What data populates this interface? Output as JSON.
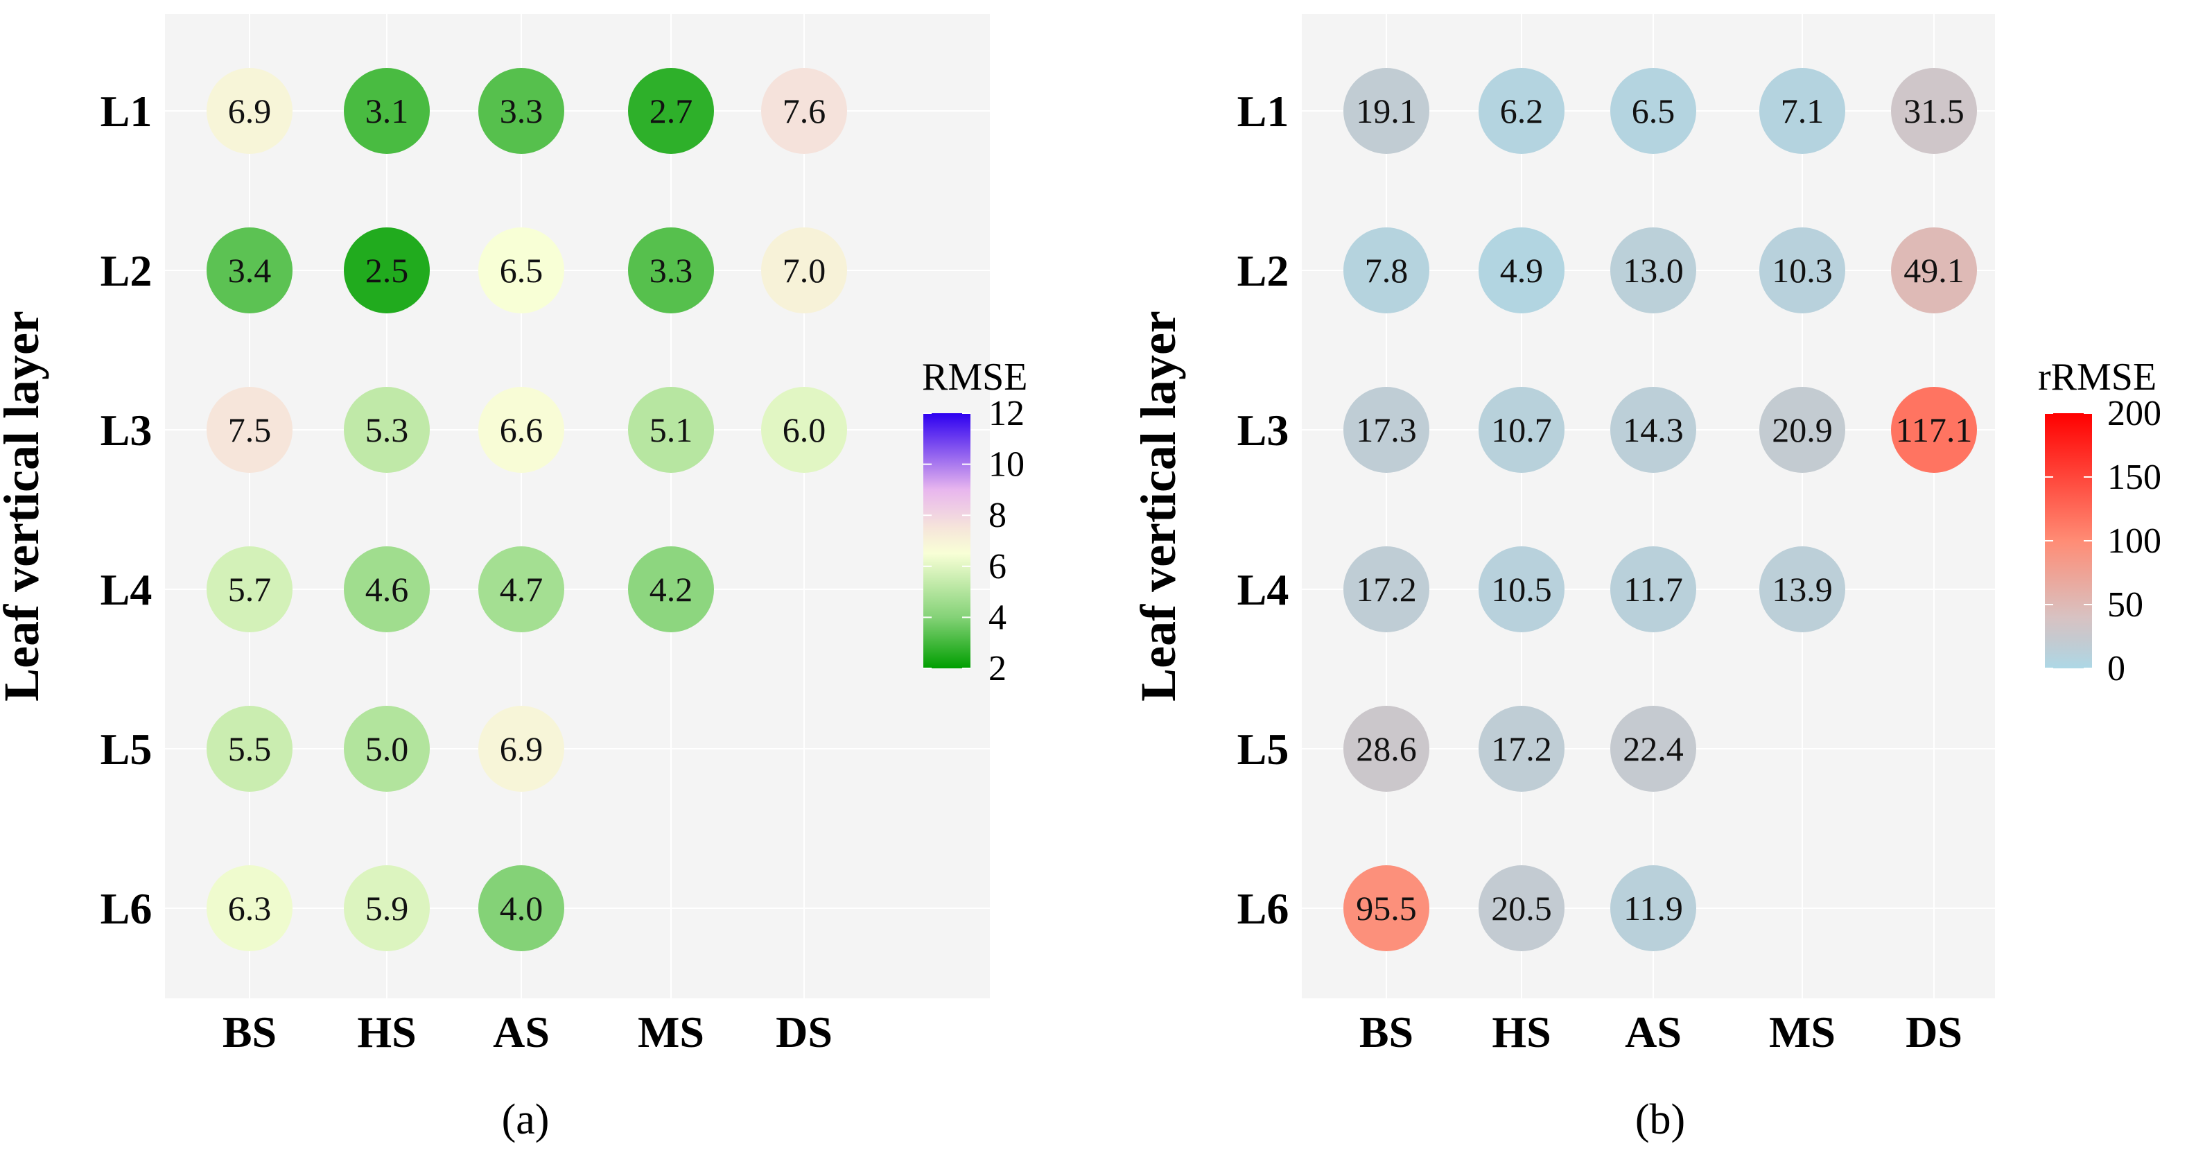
{
  "chart_data": [
    {
      "type": "heatmap",
      "panel_label": "(a)",
      "ylabel": "Leaf  vertical  layer",
      "categories": [
        "BS",
        "HS",
        "AS",
        "MS",
        "DS"
      ],
      "layers": [
        "L1",
        "L2",
        "L3",
        "L4",
        "L5",
        "L6"
      ],
      "values": [
        [
          6.9,
          3.1,
          3.3,
          2.7,
          7.6
        ],
        [
          3.4,
          2.5,
          6.5,
          3.3,
          7.0
        ],
        [
          7.5,
          5.3,
          6.6,
          5.1,
          6.0
        ],
        [
          5.7,
          4.6,
          4.7,
          4.2,
          null
        ],
        [
          5.5,
          5.0,
          6.9,
          null,
          null
        ],
        [
          6.3,
          5.9,
          4.0,
          null,
          null
        ]
      ],
      "legend": {
        "title": "RMSE",
        "min": 2,
        "max": 12,
        "ticks": [
          2,
          4,
          6,
          8,
          10,
          12
        ],
        "tick_labels": [
          "2",
          "4",
          "6",
          "8",
          "10",
          "12"
        ],
        "stops": [
          {
            "value": 2,
            "color": "#009e00"
          },
          {
            "value": 4,
            "color": "#84d277"
          },
          {
            "value": 6.5,
            "color": "#f8ffd6"
          },
          {
            "value": 7.5,
            "color": "#f6e5da"
          },
          {
            "value": 9,
            "color": "#e8b6ee"
          },
          {
            "value": 12,
            "color": "#2d00f0"
          }
        ]
      },
      "grid": true,
      "background": "#f4f4f4"
    },
    {
      "type": "heatmap",
      "panel_label": "(b)",
      "ylabel": "Leaf  vertical  layer",
      "categories": [
        "BS",
        "HS",
        "AS",
        "MS",
        "DS"
      ],
      "layers": [
        "L1",
        "L2",
        "L3",
        "L4",
        "L5",
        "L6"
      ],
      "values": [
        [
          19.1,
          6.2,
          6.5,
          7.1,
          31.5
        ],
        [
          7.8,
          4.9,
          13.0,
          10.3,
          49.1
        ],
        [
          17.3,
          10.7,
          14.3,
          20.9,
          117.1
        ],
        [
          17.2,
          10.5,
          11.7,
          13.9,
          null
        ],
        [
          28.6,
          17.2,
          22.4,
          null,
          null
        ],
        [
          95.5,
          20.5,
          11.9,
          null,
          null
        ]
      ],
      "legend": {
        "title": "rRMSE",
        "min": 0,
        "max": 200,
        "ticks": [
          0,
          50,
          100,
          150,
          200
        ],
        "tick_labels": [
          "0",
          "50",
          "100",
          "150",
          "200"
        ],
        "stops": [
          {
            "value": 0,
            "color": "#add8e6"
          },
          {
            "value": 20,
            "color": "#c2cbd2"
          },
          {
            "value": 40,
            "color": "#d8c2c2"
          },
          {
            "value": 100,
            "color": "#ff8c75"
          },
          {
            "value": 200,
            "color": "#ff0000"
          }
        ]
      },
      "grid": true,
      "background": "#f4f4f4"
    }
  ]
}
